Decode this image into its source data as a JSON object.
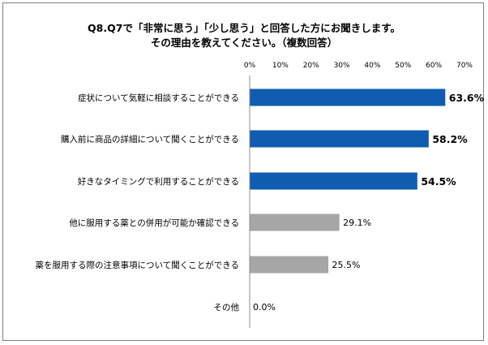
{
  "chart_data": {
    "type": "bar",
    "orientation": "horizontal",
    "title": "Q8.Q7で「非常に思う」「少し思う」と回答した方にお聞きします。",
    "subtitle": "その理由を教えてください。（複数回答）",
    "categories": [
      "症状について気軽に相談することができる",
      "購入前に商品の詳細について聞くことができる",
      "好きなタイミングで利用することができる",
      "他に服用する薬との併用が可能か確認できる",
      "薬を服用する際の注意事項について聞くことができる",
      "その他"
    ],
    "values": [
      63.6,
      58.2,
      54.5,
      29.1,
      25.5,
      0.0
    ],
    "value_labels": [
      "63.6%",
      "58.2%",
      "54.5%",
      "29.1%",
      "25.5%",
      "0.0%"
    ],
    "bar_colors": [
      "#0f5db0",
      "#0f5db0",
      "#0f5db0",
      "#a6a6a6",
      "#a6a6a6",
      "#a6a6a6"
    ],
    "xlim": [
      0,
      70
    ],
    "xticks": [
      "0%",
      "10%",
      "20%",
      "30%",
      "40%",
      "50%",
      "60%",
      "70%"
    ],
    "xlabel": "",
    "ylabel": "",
    "grid": false,
    "legend": "none"
  }
}
